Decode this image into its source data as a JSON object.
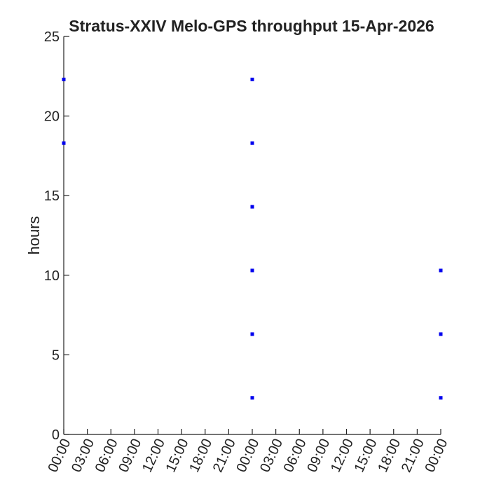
{
  "chart_data": {
    "type": "scatter",
    "title": "Stratus-XXIV Melo-GPS throughput 15-Apr-2026",
    "xlabel": "",
    "ylabel": "hours",
    "ylim": [
      0,
      25
    ],
    "yticks": [
      0,
      5,
      10,
      15,
      20,
      25
    ],
    "xlim": [
      "2026-04-15 00:00",
      "2026-04-17 00:00"
    ],
    "xticks": [
      "2026-04-15 00:00",
      "2026-04-15 03:00",
      "2026-04-15 06:00",
      "2026-04-15 09:00",
      "2026-04-15 12:00",
      "2026-04-15 15:00",
      "2026-04-15 18:00",
      "2026-04-15 21:00",
      "2026-04-16 00:00",
      "2026-04-16 03:00",
      "2026-04-16 06:00",
      "2026-04-16 09:00",
      "2026-04-16 12:00",
      "2026-04-16 15:00",
      "2026-04-16 18:00",
      "2026-04-16 21:00",
      "2026-04-17 00:00"
    ],
    "xtick_labels": [
      "00:00",
      "03:00",
      "06:00",
      "09:00",
      "12:00",
      "15:00",
      "18:00",
      "21:00",
      "00:00",
      "03:00",
      "06:00",
      "09:00",
      "12:00",
      "15:00",
      "18:00",
      "21:00",
      "00:00"
    ],
    "grid": false,
    "series": [
      {
        "color": "#0000ee",
        "marker": "square",
        "points": [
          {
            "x": "2026-04-15 00:00",
            "y": 22.3
          },
          {
            "x": "2026-04-15 00:00",
            "y": 18.3
          },
          {
            "x": "2026-04-16 00:00",
            "y": 22.3
          },
          {
            "x": "2026-04-16 00:00",
            "y": 18.3
          },
          {
            "x": "2026-04-16 00:00",
            "y": 14.3
          },
          {
            "x": "2026-04-16 00:00",
            "y": 10.3
          },
          {
            "x": "2026-04-16 00:00",
            "y": 6.3
          },
          {
            "x": "2026-04-16 00:00",
            "y": 2.3
          },
          {
            "x": "2026-04-17 00:00",
            "y": 10.3
          },
          {
            "x": "2026-04-17 00:00",
            "y": 6.3
          },
          {
            "x": "2026-04-17 00:00",
            "y": 2.3
          }
        ]
      }
    ]
  }
}
